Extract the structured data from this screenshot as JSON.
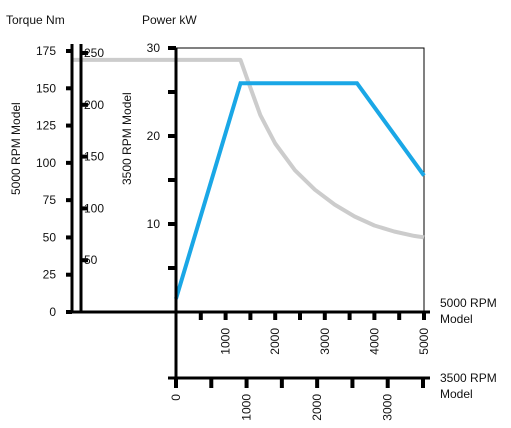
{
  "chart_data": {
    "type": "line",
    "colors": {
      "power": "#1aa7e6",
      "torque": "#cccccc",
      "axes": "#000000",
      "power_label": "#1aa7e6"
    },
    "labels": {
      "torque_header": "Torque Nm",
      "power_header": "Power kW",
      "torque_5000_model": "5000 RPM Model",
      "torque_3500_model": "3500 RPM Model",
      "rpm_5000_l1": "5000 RPM",
      "rpm_5000_l2": "Model",
      "rpm_3500_l1": "3500 RPM",
      "rpm_3500_l2": "Model"
    },
    "axes": {
      "torque_5000": {
        "ticks": [
          "0",
          "25",
          "50",
          "75",
          "100",
          "125",
          "150",
          "175"
        ],
        "range": [
          0,
          175
        ]
      },
      "torque_3500": {
        "ticks": [
          "50",
          "100",
          "150",
          "200",
          "250"
        ],
        "range": [
          0,
          250
        ]
      },
      "power": {
        "ticks": [
          "10",
          "20",
          "30"
        ],
        "range": [
          0,
          30
        ]
      },
      "rpm_5000": {
        "ticks": [
          "1000",
          "2000",
          "3000",
          "4000",
          "5000"
        ],
        "range": [
          0,
          5000
        ]
      },
      "rpm_3500": {
        "ticks": [
          "0",
          "1000",
          "2000",
          "3000"
        ],
        "range": [
          0,
          3500
        ]
      }
    },
    "series": [
      {
        "name": "Power kW",
        "x": [
          0,
          1300,
          3650,
          5000
        ],
        "values": [
          1.5,
          26,
          26,
          15.5
        ]
      },
      {
        "name": "Torque Nm",
        "x": [
          0,
          1300,
          1450,
          1700,
          2000,
          2400,
          2800,
          3200,
          3600,
          4000,
          4400,
          4800,
          5000
        ],
        "values": [
          169,
          169,
          155,
          132,
          113,
          95,
          82,
          72,
          64,
          58,
          54,
          51,
          50
        ]
      }
    ]
  }
}
